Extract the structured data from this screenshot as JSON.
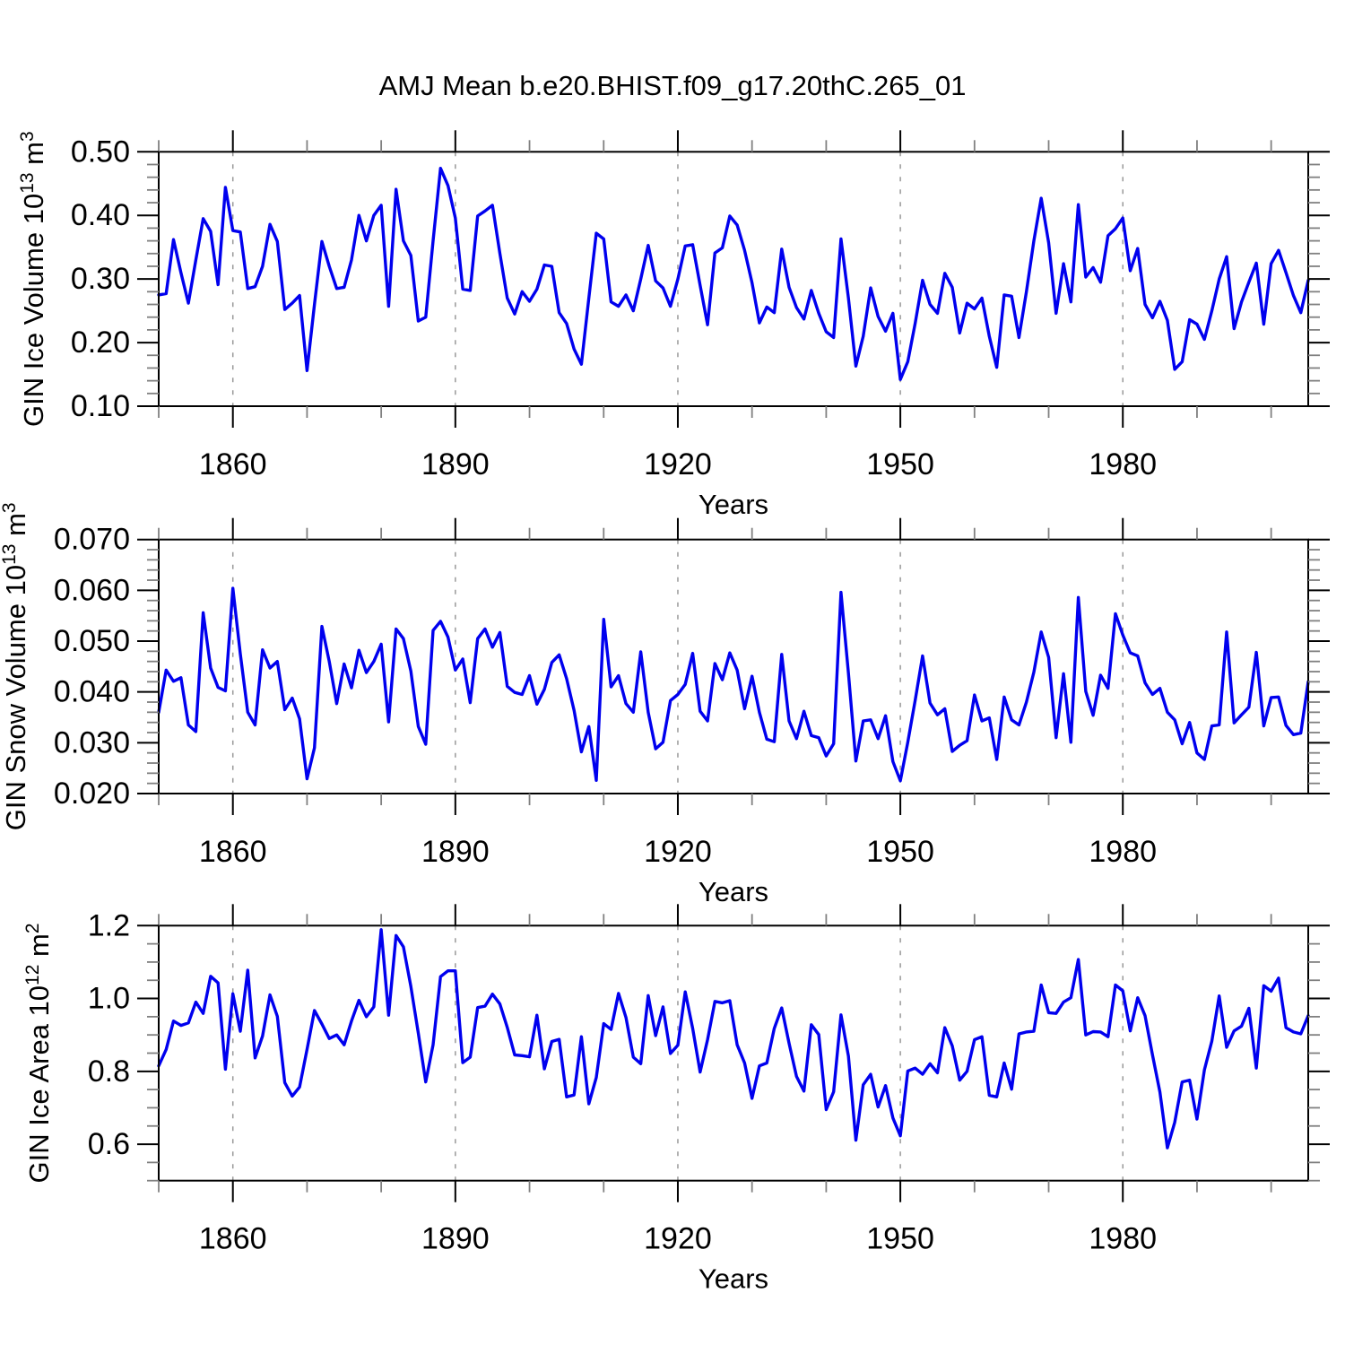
{
  "title": "AMJ Mean b.e20.BHIST.f09_g17.20thC.265_01",
  "accent_color": "#0000ee",
  "chart_data": [
    {
      "type": "line",
      "panel_id": "gin-ice-volume",
      "ylabel": "GIN Ice Volume 10¹³ m³",
      "ylabel_parts": [
        [
          "t",
          "GIN Ice Volume 10"
        ],
        [
          "s",
          "13"
        ],
        [
          "t",
          " m"
        ],
        [
          "s",
          "3"
        ]
      ],
      "xlabel": "Years",
      "x_years": {
        "start": 1850,
        "end": 2005,
        "step": 1
      },
      "ylim": [
        0.1,
        0.5
      ],
      "yticks": [
        0.1,
        0.2,
        0.3,
        0.4,
        0.5
      ],
      "ytick_labels": [
        "0.10",
        "0.20",
        "0.30",
        "0.40",
        "0.50"
      ],
      "y_minor_step": 0.02,
      "xticks": [
        1860,
        1890,
        1920,
        1950,
        1980
      ],
      "x_minor_step": 10,
      "grid": "vertical dashed at major x ticks",
      "line_color": "#0000ee",
      "values": [
        0.275,
        0.277,
        0.362,
        0.31,
        0.262,
        0.33,
        0.395,
        0.375,
        0.291,
        0.444,
        0.376,
        0.374,
        0.285,
        0.288,
        0.32,
        0.386,
        0.359,
        0.252,
        0.262,
        0.274,
        0.156,
        0.26,
        0.359,
        0.32,
        0.285,
        0.287,
        0.33,
        0.4,
        0.36,
        0.4,
        0.416,
        0.257,
        0.441,
        0.36,
        0.337,
        0.234,
        0.24,
        0.36,
        0.474,
        0.447,
        0.396,
        0.284,
        0.282,
        0.399,
        0.407,
        0.416,
        0.34,
        0.27,
        0.245,
        0.28,
        0.265,
        0.284,
        0.322,
        0.32,
        0.247,
        0.23,
        0.19,
        0.166,
        0.27,
        0.372,
        0.363,
        0.264,
        0.257,
        0.275,
        0.25,
        0.3,
        0.353,
        0.297,
        0.286,
        0.257,
        0.3,
        0.352,
        0.354,
        0.29,
        0.228,
        0.341,
        0.349,
        0.399,
        0.385,
        0.345,
        0.294,
        0.231,
        0.256,
        0.247,
        0.347,
        0.287,
        0.255,
        0.237,
        0.282,
        0.246,
        0.217,
        0.208,
        0.363,
        0.27,
        0.163,
        0.21,
        0.286,
        0.241,
        0.218,
        0.246,
        0.142,
        0.17,
        0.23,
        0.298,
        0.26,
        0.246,
        0.309,
        0.287,
        0.215,
        0.262,
        0.253,
        0.27,
        0.21,
        0.161,
        0.275,
        0.273,
        0.208,
        0.28,
        0.36,
        0.427,
        0.357,
        0.246,
        0.324,
        0.264,
        0.417,
        0.303,
        0.318,
        0.295,
        0.368,
        0.379,
        0.396,
        0.313,
        0.348,
        0.26,
        0.239,
        0.265,
        0.235,
        0.158,
        0.17,
        0.236,
        0.229,
        0.205,
        0.25,
        0.3,
        0.335,
        0.222,
        0.264,
        0.295,
        0.325,
        0.229,
        0.324,
        0.345,
        0.31,
        0.274,
        0.247,
        0.298
      ]
    },
    {
      "type": "line",
      "panel_id": "gin-snow-volume",
      "ylabel": "GIN Snow Volume 10¹³ m³",
      "ylabel_parts": [
        [
          "t",
          "GIN Snow Volume 10"
        ],
        [
          "s",
          "13"
        ],
        [
          "t",
          " m"
        ],
        [
          "s",
          "3"
        ]
      ],
      "xlabel": "Years",
      "x_years": {
        "start": 1850,
        "end": 2005,
        "step": 1
      },
      "ylim": [
        0.02,
        0.07
      ],
      "yticks": [
        0.02,
        0.03,
        0.04,
        0.05,
        0.06,
        0.07
      ],
      "ytick_labels": [
        "0.020",
        "0.030",
        "0.040",
        "0.050",
        "0.060",
        "0.070"
      ],
      "y_minor_step": 0.002,
      "xticks": [
        1860,
        1890,
        1920,
        1950,
        1980
      ],
      "x_minor_step": 10,
      "grid": "vertical dashed at major x ticks",
      "line_color": "#0000ee",
      "values": [
        0.036,
        0.0443,
        0.0421,
        0.0428,
        0.0335,
        0.0322,
        0.0556,
        0.0447,
        0.0409,
        0.0402,
        0.0604,
        0.0475,
        0.036,
        0.0335,
        0.0483,
        0.0447,
        0.046,
        0.0365,
        0.0388,
        0.0347,
        0.0229,
        0.029,
        0.0529,
        0.046,
        0.0377,
        0.0455,
        0.0408,
        0.0482,
        0.0438,
        0.046,
        0.0494,
        0.0341,
        0.0524,
        0.0505,
        0.0441,
        0.0332,
        0.0297,
        0.0521,
        0.0539,
        0.0508,
        0.0443,
        0.0465,
        0.0379,
        0.0505,
        0.0524,
        0.0488,
        0.0517,
        0.0411,
        0.0399,
        0.0395,
        0.0432,
        0.0376,
        0.0405,
        0.0458,
        0.0473,
        0.0426,
        0.0364,
        0.0282,
        0.0332,
        0.0226,
        0.0543,
        0.041,
        0.0432,
        0.0377,
        0.036,
        0.0479,
        0.036,
        0.0288,
        0.0301,
        0.0383,
        0.0395,
        0.0415,
        0.0476,
        0.0362,
        0.0343,
        0.0456,
        0.0424,
        0.0477,
        0.0443,
        0.0367,
        0.0431,
        0.036,
        0.0307,
        0.0302,
        0.0474,
        0.0343,
        0.0308,
        0.0362,
        0.0314,
        0.031,
        0.0274,
        0.0298,
        0.0596,
        0.0437,
        0.0264,
        0.0343,
        0.0345,
        0.0308,
        0.0353,
        0.0263,
        0.0225,
        0.0301,
        0.0383,
        0.0471,
        0.0378,
        0.0355,
        0.0367,
        0.0283,
        0.0295,
        0.0304,
        0.0394,
        0.0343,
        0.0349,
        0.0267,
        0.039,
        0.0345,
        0.0335,
        0.038,
        0.0439,
        0.0518,
        0.0468,
        0.031,
        0.0436,
        0.0301,
        0.0586,
        0.0401,
        0.0354,
        0.0433,
        0.0407,
        0.0554,
        0.0512,
        0.0477,
        0.0471,
        0.0418,
        0.0395,
        0.0407,
        0.036,
        0.0345,
        0.0298,
        0.034,
        0.028,
        0.0267,
        0.0333,
        0.0335,
        0.0518,
        0.0339,
        0.0355,
        0.037,
        0.0478,
        0.0333,
        0.0389,
        0.039,
        0.0334,
        0.0316,
        0.0319,
        0.042
      ]
    },
    {
      "type": "line",
      "panel_id": "gin-ice-area",
      "ylabel": "GIN Ice Area 10¹² m²",
      "ylabel_parts": [
        [
          "t",
          "GIN Ice Area 10"
        ],
        [
          "s",
          "12"
        ],
        [
          "t",
          " m"
        ],
        [
          "s",
          "2"
        ]
      ],
      "xlabel": "Years",
      "x_years": {
        "start": 1850,
        "end": 2005,
        "step": 1
      },
      "ylim": [
        0.5,
        1.2
      ],
      "yticks": [
        0.6,
        0.8,
        1.0,
        1.2
      ],
      "ytick_labels": [
        "0.6",
        "0.8",
        "1.0",
        "1.2"
      ],
      "y_minor_step": 0.05,
      "xticks": [
        1860,
        1890,
        1920,
        1950,
        1980
      ],
      "x_minor_step": 10,
      "grid": "vertical dashed at major x ticks",
      "line_color": "#0000ee",
      "values": [
        0.815,
        0.86,
        0.938,
        0.926,
        0.933,
        0.99,
        0.959,
        1.061,
        1.043,
        0.806,
        1.013,
        0.91,
        1.078,
        0.837,
        0.897,
        1.01,
        0.951,
        0.769,
        0.732,
        0.757,
        0.86,
        0.967,
        0.93,
        0.89,
        0.9,
        0.873,
        0.938,
        0.995,
        0.95,
        0.977,
        1.189,
        0.954,
        1.173,
        1.142,
        1.033,
        0.905,
        0.771,
        0.873,
        1.06,
        1.076,
        1.076,
        0.824,
        0.839,
        0.975,
        0.979,
        1.012,
        0.985,
        0.921,
        0.845,
        0.843,
        0.84,
        0.954,
        0.807,
        0.882,
        0.888,
        0.73,
        0.735,
        0.895,
        0.711,
        0.783,
        0.931,
        0.915,
        1.014,
        0.948,
        0.839,
        0.821,
        1.008,
        0.898,
        0.977,
        0.849,
        0.872,
        1.018,
        0.918,
        0.798,
        0.887,
        0.992,
        0.988,
        0.994,
        0.873,
        0.823,
        0.726,
        0.815,
        0.823,
        0.918,
        0.974,
        0.877,
        0.786,
        0.746,
        0.928,
        0.901,
        0.695,
        0.744,
        0.955,
        0.842,
        0.611,
        0.763,
        0.792,
        0.702,
        0.761,
        0.672,
        0.623,
        0.801,
        0.809,
        0.792,
        0.821,
        0.796,
        0.92,
        0.87,
        0.776,
        0.8,
        0.887,
        0.895,
        0.734,
        0.73,
        0.823,
        0.751,
        0.903,
        0.908,
        0.91,
        1.037,
        0.961,
        0.959,
        0.99,
        1.002,
        1.107,
        0.9,
        0.909,
        0.908,
        0.895,
        1.037,
        1.021,
        0.911,
        1.002,
        0.953,
        0.845,
        0.743,
        0.59,
        0.66,
        0.771,
        0.776,
        0.669,
        0.804,
        0.883,
        1.007,
        0.866,
        0.911,
        0.924,
        0.973,
        0.809,
        1.035,
        1.02,
        1.056,
        0.92,
        0.908,
        0.903,
        0.953
      ]
    }
  ]
}
